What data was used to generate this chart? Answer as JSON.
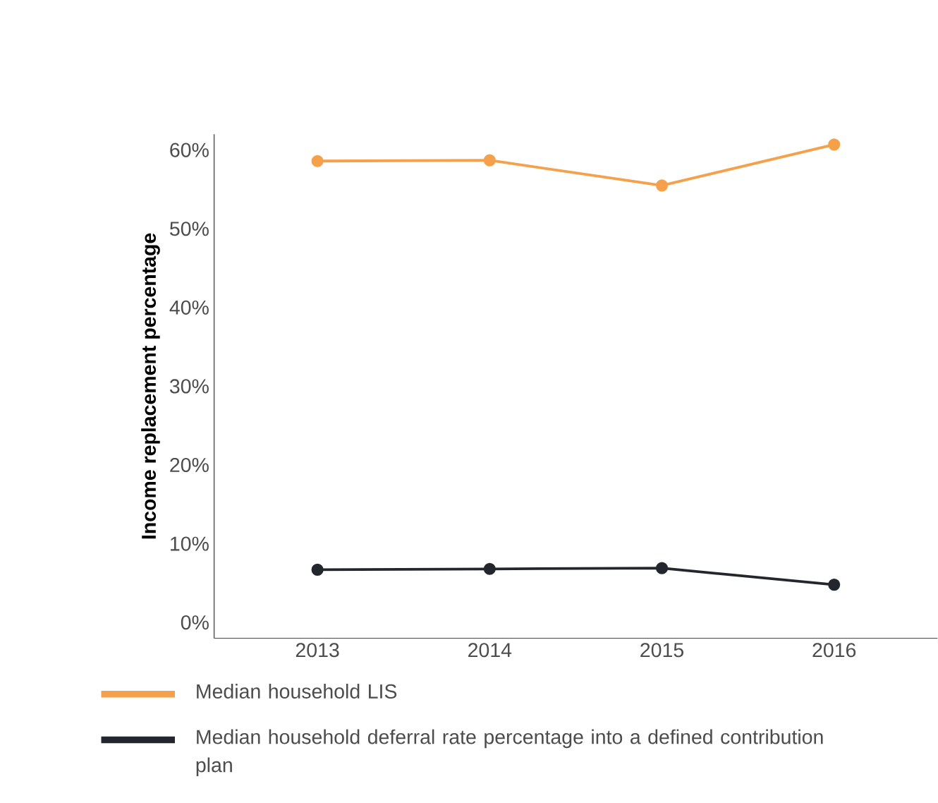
{
  "chart_data": {
    "type": "line",
    "ylabel": "Income replacement percentage",
    "categories": [
      "2013",
      "2014",
      "2015",
      "2016"
    ],
    "series": [
      {
        "name": "Median household LIS",
        "color": "#f5a04a",
        "values": [
          58.6,
          58.7,
          55.5,
          60.7
        ]
      },
      {
        "name": "Median household deferral rate percentage into a defined contribution plan",
        "color": "#23272d",
        "values": [
          6.7,
          6.8,
          6.9,
          4.8
        ]
      }
    ],
    "ylim": [
      -2,
      62
    ],
    "yticks": [
      {
        "value": 0,
        "label": "0%"
      },
      {
        "value": 10,
        "label": "10%"
      },
      {
        "value": 20,
        "label": "20%"
      },
      {
        "value": 30,
        "label": "30%"
      },
      {
        "value": 40,
        "label": "40%"
      },
      {
        "value": 50,
        "label": "50%"
      },
      {
        "value": 60,
        "label": "60%"
      }
    ],
    "grid": false,
    "legend": "bottom",
    "marker": "circle",
    "line_style": "solid"
  }
}
